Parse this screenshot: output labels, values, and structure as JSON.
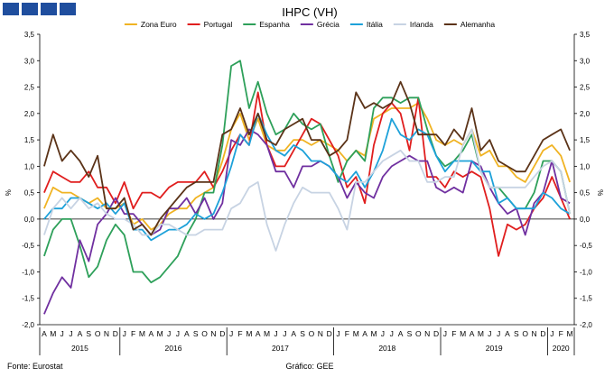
{
  "chart_data": {
    "type": "line",
    "title": "IHPC (VH)",
    "ylabel_left": "%",
    "ylabel_right": "%",
    "ylim": [
      -2.0,
      3.5
    ],
    "yticks": [
      "-2,0",
      "-1,5",
      "-1,0",
      "-0,5",
      "0,0",
      "0,5",
      "1,0",
      "1,5",
      "2,0",
      "2,5",
      "3,0",
      "3,5"
    ],
    "grid": false,
    "legend_position": "top",
    "month_labels": [
      "A",
      "M",
      "J",
      "J",
      "A",
      "S",
      "O",
      "N",
      "D",
      "J",
      "F",
      "M",
      "A",
      "M",
      "J",
      "J",
      "A",
      "S",
      "O",
      "N",
      "D",
      "J",
      "F",
      "M",
      "A",
      "M",
      "J",
      "J",
      "A",
      "S",
      "O",
      "N",
      "D",
      "J",
      "F",
      "M",
      "A",
      "M",
      "J",
      "J",
      "A",
      "S",
      "O",
      "N",
      "D",
      "J",
      "F",
      "M",
      "A",
      "M",
      "J",
      "J",
      "A",
      "S",
      "O",
      "N",
      "D",
      "J",
      "F",
      "M"
    ],
    "years": [
      {
        "label": "2015",
        "start": 0,
        "end": 8
      },
      {
        "label": "2016",
        "start": 9,
        "end": 20
      },
      {
        "label": "2017",
        "start": 21,
        "end": 32
      },
      {
        "label": "2018",
        "start": 33,
        "end": 44
      },
      {
        "label": "2019",
        "start": 45,
        "end": 56
      },
      {
        "label": "2020",
        "start": 57,
        "end": 59
      }
    ],
    "series": [
      {
        "name": "Zona Euro",
        "color": "#f0b323",
        "values": [
          0.2,
          0.6,
          0.5,
          0.5,
          0.4,
          0.3,
          0.4,
          0.2,
          0.2,
          0.3,
          -0.1,
          0.0,
          -0.2,
          -0.1,
          0.1,
          0.2,
          0.2,
          0.4,
          0.5,
          0.6,
          1.1,
          1.7,
          2.0,
          1.5,
          1.9,
          1.4,
          1.3,
          1.3,
          1.5,
          1.5,
          1.4,
          1.5,
          1.4,
          1.3,
          1.1,
          1.3,
          1.2,
          1.9,
          2.0,
          2.1,
          2.1,
          2.1,
          2.2,
          1.9,
          1.5,
          1.4,
          1.5,
          1.4,
          1.7,
          1.2,
          1.3,
          1.0,
          1.0,
          0.8,
          0.7,
          1.0,
          1.3,
          1.4,
          1.2,
          0.7
        ]
      },
      {
        "name": "Portugal",
        "color": "#e01e1e",
        "values": [
          0.5,
          0.9,
          0.8,
          0.7,
          0.7,
          0.9,
          0.6,
          0.6,
          0.3,
          0.7,
          0.2,
          0.5,
          0.5,
          0.4,
          0.6,
          0.7,
          0.7,
          0.7,
          0.9,
          0.6,
          0.9,
          1.3,
          1.6,
          1.4,
          2.4,
          1.4,
          1.0,
          1.0,
          1.3,
          1.6,
          1.9,
          1.8,
          1.5,
          1.2,
          0.6,
          0.8,
          0.3,
          1.4,
          2.0,
          2.2,
          2.0,
          1.3,
          2.3,
          0.8,
          0.8,
          0.6,
          0.9,
          0.8,
          0.9,
          0.8,
          0.2,
          -0.7,
          -0.1,
          -0.2,
          -0.1,
          0.2,
          0.4,
          0.8,
          0.4,
          0.0
        ]
      },
      {
        "name": "Espanha",
        "color": "#2ea05a",
        "values": [
          -0.7,
          -0.2,
          0.0,
          0.0,
          -0.5,
          -1.1,
          -0.9,
          -0.4,
          -0.1,
          -0.3,
          -1.0,
          -1.0,
          -1.2,
          -1.1,
          -0.9,
          -0.7,
          -0.3,
          0.0,
          0.5,
          0.5,
          1.4,
          2.9,
          3.0,
          2.1,
          2.6,
          2.0,
          1.6,
          1.7,
          2.0,
          1.8,
          1.7,
          1.8,
          1.2,
          0.7,
          1.1,
          1.3,
          1.1,
          2.1,
          2.3,
          2.3,
          2.2,
          2.3,
          2.3,
          1.7,
          1.2,
          1.0,
          1.1,
          1.3,
          1.6,
          0.9,
          0.6,
          0.6,
          0.4,
          0.2,
          0.2,
          0.5,
          1.1,
          1.1,
          0.9,
          0.1
        ]
      },
      {
        "name": "Grécia",
        "color": "#7030a0",
        "values": [
          -1.8,
          -1.4,
          -1.1,
          -1.3,
          -0.4,
          -0.8,
          -0.1,
          0.1,
          0.4,
          0.1,
          0.1,
          -0.1,
          -0.3,
          -0.2,
          0.2,
          0.2,
          0.4,
          0.1,
          0.4,
          0.0,
          0.3,
          1.5,
          1.4,
          1.7,
          1.6,
          1.4,
          0.9,
          0.9,
          0.6,
          1.0,
          1.0,
          1.1,
          1.0,
          0.8,
          0.4,
          0.7,
          0.5,
          0.4,
          0.8,
          1.0,
          1.1,
          1.2,
          1.1,
          1.1,
          0.6,
          0.5,
          0.6,
          0.5,
          1.1,
          1.0,
          0.6,
          0.3,
          0.1,
          0.2,
          -0.3,
          0.3,
          0.5,
          1.1,
          0.4,
          0.3
        ]
      },
      {
        "name": "Itália",
        "color": "#1da1d9",
        "values": [
          0.0,
          0.2,
          0.2,
          0.4,
          0.4,
          0.3,
          0.2,
          0.3,
          0.1,
          0.3,
          -0.2,
          -0.2,
          -0.4,
          -0.3,
          -0.2,
          -0.2,
          -0.1,
          0.1,
          0.0,
          0.1,
          0.5,
          1.0,
          1.6,
          1.4,
          2.0,
          1.6,
          1.3,
          1.2,
          1.4,
          1.3,
          1.1,
          1.1,
          1.0,
          0.8,
          0.7,
          0.9,
          0.6,
          0.9,
          1.3,
          1.9,
          1.6,
          1.5,
          1.7,
          1.6,
          1.2,
          0.9,
          1.1,
          1.1,
          1.1,
          0.9,
          0.9,
          0.3,
          0.4,
          0.2,
          0.2,
          0.2,
          0.5,
          0.4,
          0.2,
          0.1
        ]
      },
      {
        "name": "Irlanda",
        "color": "#c7d3e3",
        "values": [
          -0.3,
          0.2,
          0.4,
          0.2,
          0.4,
          0.2,
          0.3,
          0.1,
          0.0,
          0.0,
          -0.1,
          -0.3,
          -0.3,
          -0.1,
          -0.1,
          -0.2,
          -0.3,
          -0.3,
          -0.2,
          -0.2,
          -0.2,
          0.2,
          0.3,
          0.6,
          0.7,
          -0.1,
          -0.6,
          -0.1,
          0.3,
          0.6,
          0.5,
          0.5,
          0.5,
          0.2,
          -0.2,
          0.7,
          0.7,
          0.9,
          1.1,
          1.2,
          1.3,
          1.1,
          1.1,
          0.7,
          0.7,
          0.8,
          0.8,
          1.4,
          1.7,
          0.9,
          0.6,
          0.6,
          0.6,
          0.6,
          0.6,
          0.8,
          1.0,
          1.1,
          0.9,
          0.1
        ]
      },
      {
        "name": "Alemanha",
        "color": "#5b3318",
        "values": [
          1.0,
          1.6,
          1.1,
          1.3,
          1.1,
          0.8,
          1.2,
          0.2,
          0.2,
          0.4,
          -0.2,
          -0.1,
          -0.3,
          0.0,
          0.2,
          0.4,
          0.6,
          0.7,
          0.7,
          0.7,
          1.6,
          1.7,
          2.1,
          1.6,
          2.0,
          1.5,
          1.4,
          1.7,
          1.8,
          1.9,
          1.5,
          1.5,
          1.2,
          1.3,
          1.5,
          2.4,
          2.1,
          2.2,
          2.1,
          2.2,
          2.6,
          2.2,
          1.6,
          1.6,
          1.6,
          1.4,
          1.7,
          1.5,
          2.1,
          1.3,
          1.5,
          1.1,
          1.0,
          0.9,
          0.9,
          1.2,
          1.5,
          1.6,
          1.7,
          1.3
        ]
      }
    ]
  },
  "footer": {
    "source": "Fonte: Eurostat",
    "credit": "Gráfico: GEE"
  }
}
